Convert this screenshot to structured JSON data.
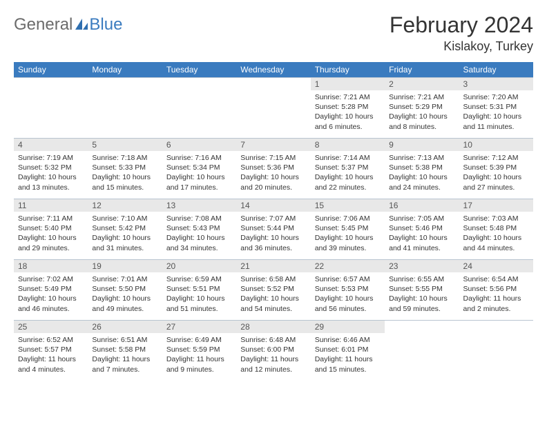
{
  "brand": {
    "part1": "General",
    "part2": "Blue"
  },
  "title": "February 2024",
  "location": "Kislakoy, Turkey",
  "colors": {
    "header_bg": "#3a7bbf",
    "header_text": "#ffffff",
    "daynum_bg": "#e8e8e8",
    "cell_border": "#b8c4d0",
    "logo_gray": "#6b6b6b",
    "logo_blue": "#3a7bbf"
  },
  "weekdays": [
    "Sunday",
    "Monday",
    "Tuesday",
    "Wednesday",
    "Thursday",
    "Friday",
    "Saturday"
  ],
  "weeks": [
    [
      null,
      null,
      null,
      null,
      {
        "n": "1",
        "sr": "7:21 AM",
        "ss": "5:28 PM",
        "dl": "10 hours and 6 minutes."
      },
      {
        "n": "2",
        "sr": "7:21 AM",
        "ss": "5:29 PM",
        "dl": "10 hours and 8 minutes."
      },
      {
        "n": "3",
        "sr": "7:20 AM",
        "ss": "5:31 PM",
        "dl": "10 hours and 11 minutes."
      }
    ],
    [
      {
        "n": "4",
        "sr": "7:19 AM",
        "ss": "5:32 PM",
        "dl": "10 hours and 13 minutes."
      },
      {
        "n": "5",
        "sr": "7:18 AM",
        "ss": "5:33 PM",
        "dl": "10 hours and 15 minutes."
      },
      {
        "n": "6",
        "sr": "7:16 AM",
        "ss": "5:34 PM",
        "dl": "10 hours and 17 minutes."
      },
      {
        "n": "7",
        "sr": "7:15 AM",
        "ss": "5:36 PM",
        "dl": "10 hours and 20 minutes."
      },
      {
        "n": "8",
        "sr": "7:14 AM",
        "ss": "5:37 PM",
        "dl": "10 hours and 22 minutes."
      },
      {
        "n": "9",
        "sr": "7:13 AM",
        "ss": "5:38 PM",
        "dl": "10 hours and 24 minutes."
      },
      {
        "n": "10",
        "sr": "7:12 AM",
        "ss": "5:39 PM",
        "dl": "10 hours and 27 minutes."
      }
    ],
    [
      {
        "n": "11",
        "sr": "7:11 AM",
        "ss": "5:40 PM",
        "dl": "10 hours and 29 minutes."
      },
      {
        "n": "12",
        "sr": "7:10 AM",
        "ss": "5:42 PM",
        "dl": "10 hours and 31 minutes."
      },
      {
        "n": "13",
        "sr": "7:08 AM",
        "ss": "5:43 PM",
        "dl": "10 hours and 34 minutes."
      },
      {
        "n": "14",
        "sr": "7:07 AM",
        "ss": "5:44 PM",
        "dl": "10 hours and 36 minutes."
      },
      {
        "n": "15",
        "sr": "7:06 AM",
        "ss": "5:45 PM",
        "dl": "10 hours and 39 minutes."
      },
      {
        "n": "16",
        "sr": "7:05 AM",
        "ss": "5:46 PM",
        "dl": "10 hours and 41 minutes."
      },
      {
        "n": "17",
        "sr": "7:03 AM",
        "ss": "5:48 PM",
        "dl": "10 hours and 44 minutes."
      }
    ],
    [
      {
        "n": "18",
        "sr": "7:02 AM",
        "ss": "5:49 PM",
        "dl": "10 hours and 46 minutes."
      },
      {
        "n": "19",
        "sr": "7:01 AM",
        "ss": "5:50 PM",
        "dl": "10 hours and 49 minutes."
      },
      {
        "n": "20",
        "sr": "6:59 AM",
        "ss": "5:51 PM",
        "dl": "10 hours and 51 minutes."
      },
      {
        "n": "21",
        "sr": "6:58 AM",
        "ss": "5:52 PM",
        "dl": "10 hours and 54 minutes."
      },
      {
        "n": "22",
        "sr": "6:57 AM",
        "ss": "5:53 PM",
        "dl": "10 hours and 56 minutes."
      },
      {
        "n": "23",
        "sr": "6:55 AM",
        "ss": "5:55 PM",
        "dl": "10 hours and 59 minutes."
      },
      {
        "n": "24",
        "sr": "6:54 AM",
        "ss": "5:56 PM",
        "dl": "11 hours and 2 minutes."
      }
    ],
    [
      {
        "n": "25",
        "sr": "6:52 AM",
        "ss": "5:57 PM",
        "dl": "11 hours and 4 minutes."
      },
      {
        "n": "26",
        "sr": "6:51 AM",
        "ss": "5:58 PM",
        "dl": "11 hours and 7 minutes."
      },
      {
        "n": "27",
        "sr": "6:49 AM",
        "ss": "5:59 PM",
        "dl": "11 hours and 9 minutes."
      },
      {
        "n": "28",
        "sr": "6:48 AM",
        "ss": "6:00 PM",
        "dl": "11 hours and 12 minutes."
      },
      {
        "n": "29",
        "sr": "6:46 AM",
        "ss": "6:01 PM",
        "dl": "11 hours and 15 minutes."
      },
      null,
      null
    ]
  ],
  "labels": {
    "sunrise": "Sunrise: ",
    "sunset": "Sunset: ",
    "daylight": "Daylight: "
  }
}
